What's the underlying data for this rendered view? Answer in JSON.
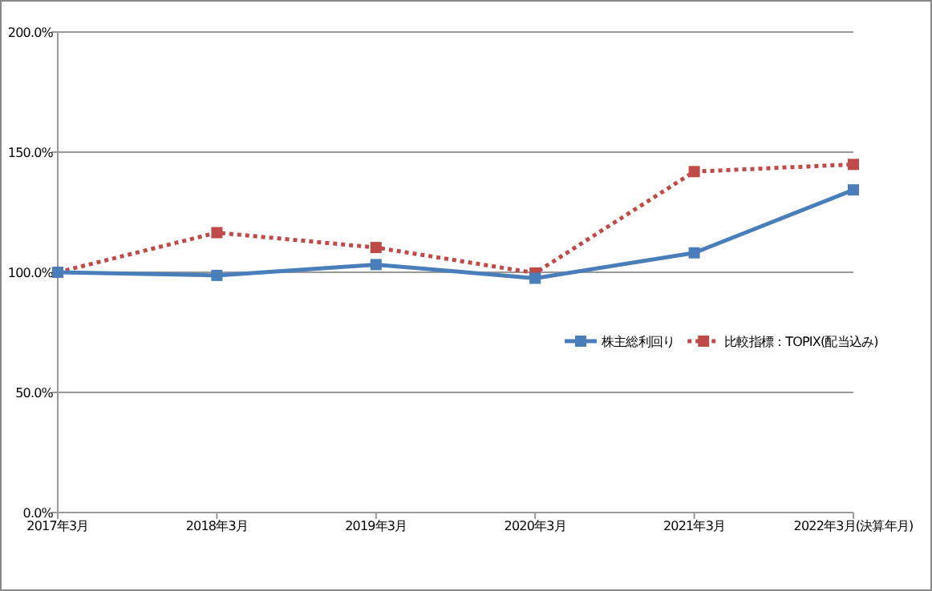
{
  "chart_data": {
    "type": "line",
    "categories": [
      "2017年3月",
      "2018年3月",
      "2019年3月",
      "2020年3月",
      "2021年3月",
      "2022年3月(決算年月)"
    ],
    "series": [
      {
        "name": "株主総利回り",
        "color": "#4a7ebb",
        "line_style": "solid",
        "values": [
          100,
          98.7,
          103.2,
          97.5,
          108.1,
          134.3
        ]
      },
      {
        "name": "比較指標：TOPIX(配当込み)",
        "color": "#be4b48",
        "line_style": "dotted",
        "values": [
          100,
          116.5,
          110.3,
          99.7,
          141.9,
          144.9
        ]
      }
    ],
    "ylim": [
      0,
      200
    ],
    "yticks": [
      {
        "value": 0,
        "label": "0.0%"
      },
      {
        "value": 50,
        "label": "50.0%"
      },
      {
        "value": 100,
        "label": "100.0%"
      },
      {
        "value": 150,
        "label": "150.0%"
      },
      {
        "value": 200,
        "label": "200.0%"
      }
    ],
    "grid": "y",
    "legend": "right",
    "marker": "square"
  }
}
